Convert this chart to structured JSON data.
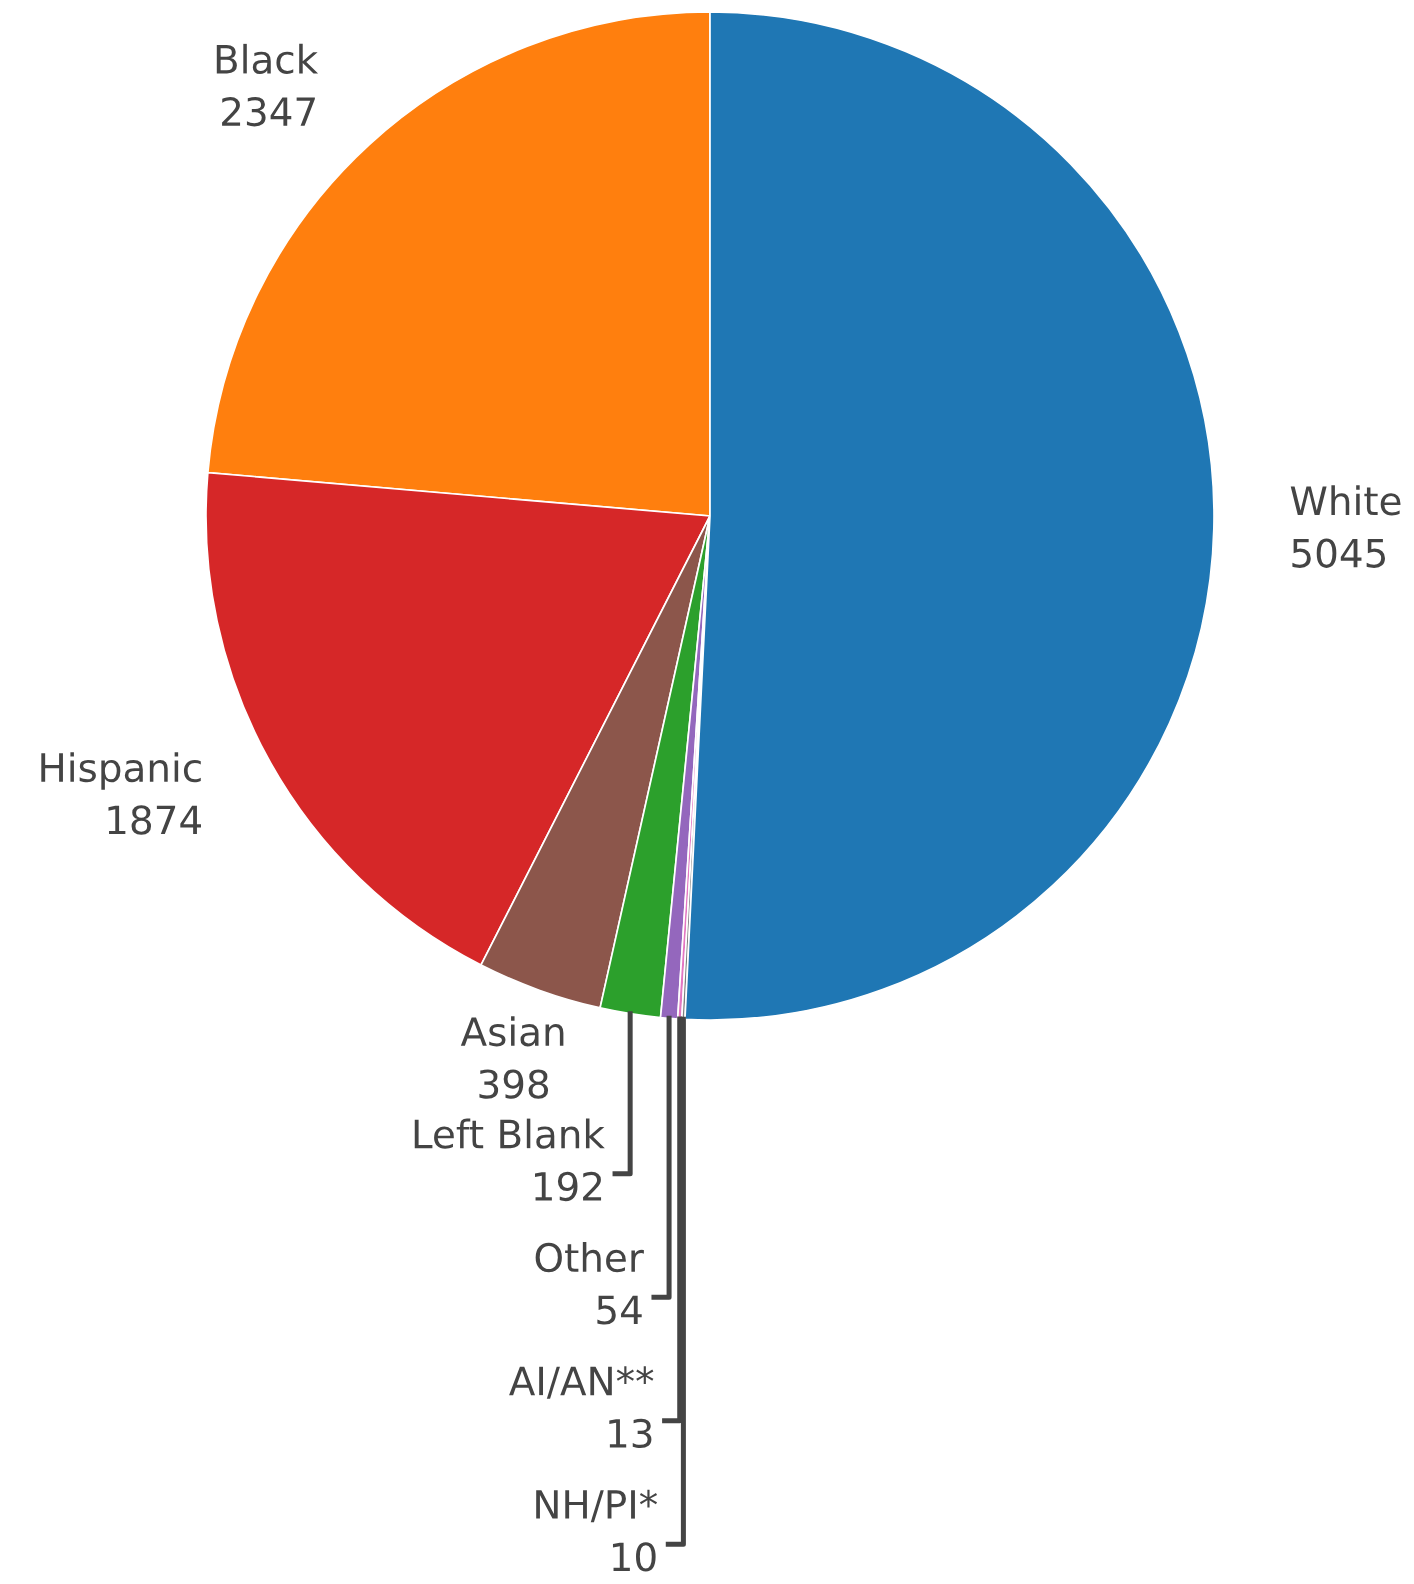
{
  "chart_data": {
    "type": "pie",
    "categories": [
      "Black",
      "Hispanic",
      "Asian",
      "Left Blank",
      "Other",
      "AI/AN**",
      "NH/PI*",
      "White"
    ],
    "values": [
      2347,
      1874,
      398,
      192,
      54,
      13,
      10,
      5045
    ],
    "colors": [
      "#ff7f0e",
      "#d62728",
      "#8c564b",
      "#2ca02c",
      "#9467bd",
      "#e377c2",
      "#7f7f7f",
      "#1f77b4"
    ],
    "data_labels": true
  }
}
